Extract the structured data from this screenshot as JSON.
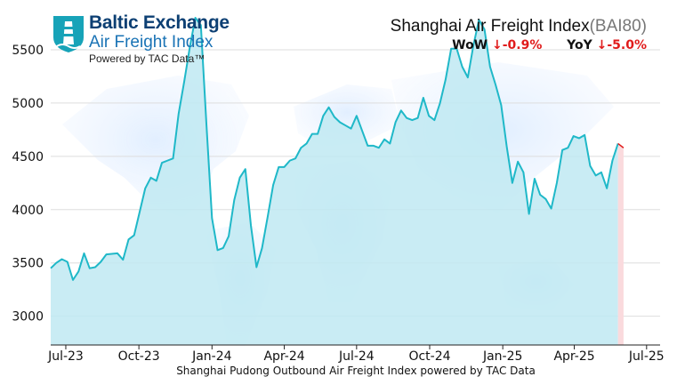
{
  "logo": {
    "brand": "Baltic Exchange",
    "subtitle": "Air Freight Index",
    "powered_by": "Powered by TAC Data™"
  },
  "header": {
    "title": "Shanghai Air Freight Index",
    "code": "(BAI80)",
    "wow_label": "WoW",
    "wow_value": "↓-0.9%",
    "yoy_label": "YoY",
    "yoy_value": "↓-5.0%"
  },
  "colors": {
    "line": "#1fb8c8",
    "fill": "#bfe9f2",
    "down_fill": "#fadadd",
    "down_line": "#e01b1b",
    "negative": "#e01b1b",
    "grid": "#dddddd"
  },
  "chart_data": {
    "type": "area",
    "title": "Shanghai Air Freight Index (BAI80)",
    "xlabel": "Shanghai Pudong Outbound Air Freight Index powered by TAC Data",
    "ylabel": "",
    "grid": true,
    "ylim": [
      2730,
      5800
    ],
    "yticks": [
      3000,
      3500,
      4000,
      4500,
      5000,
      5500
    ],
    "xlim": [
      "2023-06-12",
      "2025-07-18"
    ],
    "xticks": [
      {
        "date": "2023-07-01",
        "label": "Jul-23"
      },
      {
        "date": "2023-10-01",
        "label": "Oct-23"
      },
      {
        "date": "2024-01-01",
        "label": "Jan-24"
      },
      {
        "date": "2024-04-01",
        "label": "Apr-24"
      },
      {
        "date": "2024-07-01",
        "label": "Jul-24"
      },
      {
        "date": "2024-10-01",
        "label": "Oct-24"
      },
      {
        "date": "2025-01-01",
        "label": "Jan-25"
      },
      {
        "date": "2025-04-01",
        "label": "Apr-25"
      },
      {
        "date": "2025-07-01",
        "label": "Jul-25"
      }
    ],
    "series": [
      {
        "points": [
          [
            "2023-06-12",
            3450
          ],
          [
            "2023-06-19",
            3500
          ],
          [
            "2023-06-26",
            3535
          ],
          [
            "2023-07-03",
            3510
          ],
          [
            "2023-07-10",
            3340
          ],
          [
            "2023-07-17",
            3420
          ],
          [
            "2023-07-24",
            3590
          ],
          [
            "2023-07-31",
            3450
          ],
          [
            "2023-08-07",
            3460
          ],
          [
            "2023-08-14",
            3510
          ],
          [
            "2023-08-21",
            3580
          ],
          [
            "2023-08-28",
            3585
          ],
          [
            "2023-09-04",
            3590
          ],
          [
            "2023-09-11",
            3530
          ],
          [
            "2023-09-18",
            3720
          ],
          [
            "2023-09-25",
            3760
          ],
          [
            "2023-10-02",
            3980
          ],
          [
            "2023-10-09",
            4200
          ],
          [
            "2023-10-16",
            4300
          ],
          [
            "2023-10-23",
            4270
          ],
          [
            "2023-10-30",
            4440
          ],
          [
            "2023-11-06",
            4460
          ],
          [
            "2023-11-13",
            4480
          ],
          [
            "2023-11-20",
            4900
          ],
          [
            "2023-11-27",
            5200
          ],
          [
            "2023-12-04",
            5520
          ],
          [
            "2023-12-11",
            5800
          ],
          [
            "2023-12-18",
            5730
          ],
          [
            "2023-12-25",
            4800
          ],
          [
            "2024-01-01",
            3920
          ],
          [
            "2024-01-08",
            3620
          ],
          [
            "2024-01-15",
            3640
          ],
          [
            "2024-01-22",
            3750
          ],
          [
            "2024-01-29",
            4090
          ],
          [
            "2024-02-05",
            4300
          ],
          [
            "2024-02-12",
            4380
          ],
          [
            "2024-02-19",
            3850
          ],
          [
            "2024-02-26",
            3460
          ],
          [
            "2024-03-04",
            3640
          ],
          [
            "2024-03-11",
            3930
          ],
          [
            "2024-03-18",
            4230
          ],
          [
            "2024-03-25",
            4400
          ],
          [
            "2024-04-01",
            4400
          ],
          [
            "2024-04-08",
            4460
          ],
          [
            "2024-04-15",
            4480
          ],
          [
            "2024-04-22",
            4580
          ],
          [
            "2024-04-29",
            4620
          ],
          [
            "2024-05-06",
            4710
          ],
          [
            "2024-05-13",
            4710
          ],
          [
            "2024-05-20",
            4880
          ],
          [
            "2024-05-27",
            4960
          ],
          [
            "2024-06-03",
            4870
          ],
          [
            "2024-06-10",
            4820
          ],
          [
            "2024-06-17",
            4790
          ],
          [
            "2024-06-24",
            4760
          ],
          [
            "2024-07-01",
            4880
          ],
          [
            "2024-07-08",
            4740
          ],
          [
            "2024-07-15",
            4600
          ],
          [
            "2024-07-22",
            4600
          ],
          [
            "2024-07-29",
            4580
          ],
          [
            "2024-08-05",
            4660
          ],
          [
            "2024-08-12",
            4620
          ],
          [
            "2024-08-19",
            4820
          ],
          [
            "2024-08-26",
            4930
          ],
          [
            "2024-09-02",
            4860
          ],
          [
            "2024-09-09",
            4840
          ],
          [
            "2024-09-16",
            4860
          ],
          [
            "2024-09-23",
            5050
          ],
          [
            "2024-09-30",
            4880
          ],
          [
            "2024-10-07",
            4840
          ],
          [
            "2024-10-14",
            5000
          ],
          [
            "2024-10-21",
            5220
          ],
          [
            "2024-10-28",
            5510
          ],
          [
            "2024-11-04",
            5510
          ],
          [
            "2024-11-11",
            5340
          ],
          [
            "2024-11-18",
            5240
          ],
          [
            "2024-11-25",
            5540
          ],
          [
            "2024-12-02",
            5780
          ],
          [
            "2024-12-09",
            5690
          ],
          [
            "2024-12-16",
            5340
          ],
          [
            "2024-12-23",
            5170
          ],
          [
            "2024-12-30",
            4980
          ],
          [
            "2025-01-06",
            4590
          ],
          [
            "2025-01-13",
            4250
          ],
          [
            "2025-01-20",
            4450
          ],
          [
            "2025-01-27",
            4350
          ],
          [
            "2025-02-03",
            3960
          ],
          [
            "2025-02-10",
            4290
          ],
          [
            "2025-02-17",
            4140
          ],
          [
            "2025-02-24",
            4100
          ],
          [
            "2025-03-03",
            4010
          ],
          [
            "2025-03-10",
            4250
          ],
          [
            "2025-03-17",
            4560
          ],
          [
            "2025-03-24",
            4580
          ],
          [
            "2025-03-31",
            4690
          ],
          [
            "2025-04-07",
            4670
          ],
          [
            "2025-04-14",
            4700
          ],
          [
            "2025-04-21",
            4410
          ],
          [
            "2025-04-28",
            4320
          ],
          [
            "2025-05-05",
            4350
          ],
          [
            "2025-05-12",
            4200
          ],
          [
            "2025-05-19",
            4460
          ],
          [
            "2025-05-26",
            4620
          ]
        ]
      }
    ],
    "latest_point": [
      "2025-06-02",
      4580
    ]
  },
  "footer": {
    "caption": "Shanghai Pudong Outbound Air Freight Index powered by TAC Data"
  }
}
